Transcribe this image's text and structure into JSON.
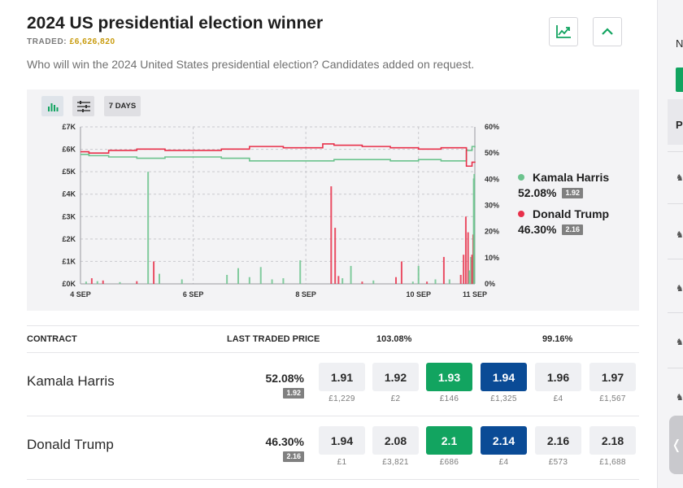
{
  "market": {
    "title": "2024 US presidential election winner",
    "traded_label": "TRADED:",
    "traded_amount": "£6,626,820",
    "description": "Who will win the 2024 United States presidential election? Candidates added on request."
  },
  "header_buttons": {
    "chart_icon": "line-chart-icon",
    "collapse_icon": "chevron-up-icon"
  },
  "chart_toolbar": {
    "volume_icon": "bar-chart-icon",
    "settings_icon": "sliders-icon",
    "range_label": "7 DAYS"
  },
  "colors": {
    "harris": "#6cc38d",
    "trump": "#e8304a",
    "back_best": "#12a460",
    "lay_best": "#0a4b96",
    "gold": "#c89a0a"
  },
  "chart_data": {
    "type": "line",
    "x_ticks": [
      "4 SEP",
      "6 SEP",
      "8 SEP",
      "10 SEP",
      "11 SEP"
    ],
    "x_tick_days": [
      4,
      6,
      8,
      10,
      11
    ],
    "x_range_days": [
      4,
      11
    ],
    "y_left_ticks": [
      "£7K",
      "£6K",
      "£5K",
      "£4K",
      "£3K",
      "£2K",
      "£1K",
      "£0K"
    ],
    "y_left_range": [
      0,
      7000
    ],
    "y_right_ticks": [
      "60%",
      "50%",
      "40%",
      "30%",
      "20%",
      "10%",
      "0%"
    ],
    "y_right_range": [
      0,
      60
    ],
    "grid": true,
    "series": [
      {
        "name": "Kamala Harris",
        "color": "#6cc38d",
        "x": [
          4.0,
          4.15,
          4.5,
          5.0,
          5.5,
          6.0,
          6.5,
          7.0,
          7.6,
          8.0,
          8.5,
          9.0,
          9.5,
          10.0,
          10.4,
          10.7,
          10.85,
          10.95,
          11.0
        ],
        "values": [
          49.5,
          49.0,
          48.5,
          48.0,
          48.5,
          48.5,
          48.0,
          47.0,
          47.0,
          47.0,
          47.5,
          47.5,
          47.0,
          47.5,
          47.0,
          47.0,
          51.0,
          52.5,
          52.1
        ]
      },
      {
        "name": "Donald Trump",
        "color": "#e8304a",
        "x": [
          4.0,
          4.15,
          4.5,
          5.0,
          5.5,
          6.0,
          6.5,
          7.0,
          7.6,
          8.0,
          8.3,
          8.5,
          9.0,
          9.5,
          10.0,
          10.4,
          10.7,
          10.85,
          10.95,
          11.0
        ],
        "values": [
          50.5,
          50.0,
          51.0,
          51.5,
          51.0,
          51.0,
          51.5,
          52.5,
          52.0,
          52.0,
          53.5,
          53.0,
          52.5,
          52.0,
          51.5,
          52.0,
          52.0,
          45.0,
          46.5,
          46.3
        ]
      }
    ],
    "volume_bars": [
      {
        "x": 4.1,
        "v": 100,
        "s": "h"
      },
      {
        "x": 4.2,
        "v": 250,
        "s": "t"
      },
      {
        "x": 4.3,
        "v": 120,
        "s": "h"
      },
      {
        "x": 4.4,
        "v": 150,
        "s": "t"
      },
      {
        "x": 4.7,
        "v": 80,
        "s": "h"
      },
      {
        "x": 5.0,
        "v": 120,
        "s": "t"
      },
      {
        "x": 5.2,
        "v": 5000,
        "s": "h"
      },
      {
        "x": 5.3,
        "v": 1000,
        "s": "t"
      },
      {
        "x": 5.4,
        "v": 450,
        "s": "h"
      },
      {
        "x": 5.8,
        "v": 200,
        "s": "h"
      },
      {
        "x": 6.6,
        "v": 400,
        "s": "h"
      },
      {
        "x": 6.8,
        "v": 700,
        "s": "h"
      },
      {
        "x": 7.0,
        "v": 300,
        "s": "h"
      },
      {
        "x": 7.2,
        "v": 750,
        "s": "h"
      },
      {
        "x": 7.4,
        "v": 200,
        "s": "h"
      },
      {
        "x": 7.6,
        "v": 250,
        "s": "h"
      },
      {
        "x": 7.9,
        "v": 1050,
        "s": "h"
      },
      {
        "x": 8.45,
        "v": 4350,
        "s": "t"
      },
      {
        "x": 8.52,
        "v": 2500,
        "s": "t"
      },
      {
        "x": 8.58,
        "v": 350,
        "s": "t"
      },
      {
        "x": 8.65,
        "v": 250,
        "s": "h"
      },
      {
        "x": 8.8,
        "v": 800,
        "s": "h"
      },
      {
        "x": 9.0,
        "v": 100,
        "s": "t"
      },
      {
        "x": 9.2,
        "v": 150,
        "s": "h"
      },
      {
        "x": 9.6,
        "v": 300,
        "s": "t"
      },
      {
        "x": 9.7,
        "v": 1000,
        "s": "t"
      },
      {
        "x": 9.9,
        "v": 100,
        "s": "h"
      },
      {
        "x": 10.0,
        "v": 800,
        "s": "h"
      },
      {
        "x": 10.15,
        "v": 100,
        "s": "t"
      },
      {
        "x": 10.3,
        "v": 200,
        "s": "h"
      },
      {
        "x": 10.45,
        "v": 1200,
        "s": "t"
      },
      {
        "x": 10.55,
        "v": 200,
        "s": "h"
      },
      {
        "x": 10.75,
        "v": 400,
        "s": "t"
      },
      {
        "x": 10.8,
        "v": 1300,
        "s": "t"
      },
      {
        "x": 10.84,
        "v": 3000,
        "s": "t"
      },
      {
        "x": 10.88,
        "v": 2300,
        "s": "t"
      },
      {
        "x": 10.9,
        "v": 600,
        "s": "h"
      },
      {
        "x": 10.93,
        "v": 1200,
        "s": "h"
      },
      {
        "x": 10.95,
        "v": 1300,
        "s": "t"
      },
      {
        "x": 10.97,
        "v": 2200,
        "s": "t"
      },
      {
        "x": 10.98,
        "v": 4700,
        "s": "h"
      },
      {
        "x": 10.99,
        "v": 4900,
        "s": "h"
      }
    ]
  },
  "legend": [
    {
      "name": "Kamala Harris",
      "pct": "52.08%",
      "price": "1.92"
    },
    {
      "name": "Donald Trump",
      "pct": "46.30%",
      "price": "2.16"
    }
  ],
  "table": {
    "col_contract": "CONTRACT",
    "col_ltp": "LAST TRADED PRICE",
    "back_book": "103.08%",
    "lay_book": "99.16%",
    "rows": [
      {
        "runner": "Kamala Harris",
        "pct": "52.08%",
        "badge": "1.92",
        "cells": [
          {
            "price": "1.91",
            "amount": "£1,229"
          },
          {
            "price": "1.92",
            "amount": "£2"
          },
          {
            "price": "1.93",
            "amount": "£146"
          },
          {
            "price": "1.94",
            "amount": "£1,325"
          },
          {
            "price": "1.96",
            "amount": "£4"
          },
          {
            "price": "1.97",
            "amount": "£1,567"
          }
        ]
      },
      {
        "runner": "Donald Trump",
        "pct": "46.30%",
        "badge": "2.16",
        "cells": [
          {
            "price": "1.94",
            "amount": "£1"
          },
          {
            "price": "2.08",
            "amount": "£3,821"
          },
          {
            "price": "2.1",
            "amount": "£686"
          },
          {
            "price": "2.14",
            "amount": "£4"
          },
          {
            "price": "2.16",
            "amount": "£573"
          },
          {
            "price": "2.18",
            "amount": "£1,688"
          }
        ]
      }
    ]
  },
  "right_panel": {
    "letter": "N",
    "header": "P",
    "icon": "horse-racing-icon",
    "handle_icon": "chevron-left-icon",
    "handle_glyph": "❬"
  }
}
